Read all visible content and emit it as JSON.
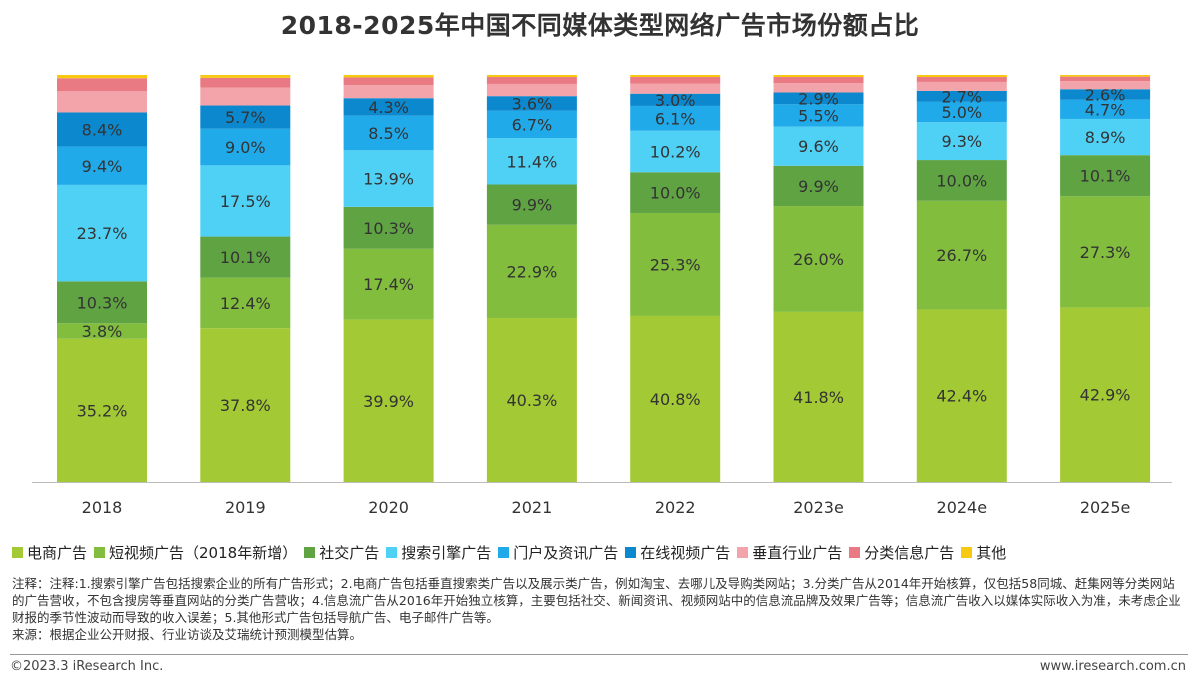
{
  "chart_data": {
    "type": "bar",
    "stacked": true,
    "title": "2018-2025年中国不同媒体类型网络广告市场份额占比",
    "xlabel": "",
    "ylabel": "",
    "ylim": [
      0,
      100
    ],
    "grid": false,
    "legend_position": "bottom",
    "categories": [
      "2018",
      "2019",
      "2020",
      "2021",
      "2022",
      "2023e",
      "2024e",
      "2025e"
    ],
    "series": [
      {
        "name": "电商广告",
        "color": "#a3c935",
        "values": [
          35.2,
          37.8,
          39.9,
          40.3,
          40.8,
          41.8,
          42.4,
          42.9
        ]
      },
      {
        "name": "短视频广告（2018年新增）",
        "color": "#82bd3e",
        "values": [
          3.8,
          12.4,
          17.4,
          22.9,
          25.3,
          26.0,
          26.7,
          27.3
        ]
      },
      {
        "name": "社交广告",
        "color": "#5fa343",
        "values": [
          10.3,
          10.1,
          10.3,
          9.9,
          10.0,
          9.9,
          10.0,
          10.1
        ]
      },
      {
        "name": "搜索引擎广告",
        "color": "#4fd0f5",
        "values": [
          23.7,
          17.5,
          13.9,
          11.4,
          10.2,
          9.6,
          9.3,
          8.9
        ]
      },
      {
        "name": "门户及资讯广告",
        "color": "#21aaea",
        "values": [
          9.4,
          9.0,
          8.5,
          6.7,
          6.1,
          5.5,
          5.0,
          4.7
        ]
      },
      {
        "name": "在线视频广告",
        "color": "#0c88cf",
        "values": [
          8.4,
          5.7,
          4.3,
          3.6,
          3.0,
          2.9,
          2.7,
          2.6
        ]
      },
      {
        "name": "垂直行业广告",
        "color": "#f3a4aa",
        "values": [
          5.2,
          4.4,
          3.2,
          3.0,
          2.5,
          2.3,
          2.2,
          2.0
        ]
      },
      {
        "name": "分类信息广告",
        "color": "#e97a84",
        "values": [
          3.2,
          2.4,
          1.9,
          1.7,
          1.6,
          1.5,
          1.2,
          1.1
        ]
      },
      {
        "name": "其他",
        "color": "#f7c910",
        "values": [
          0.8,
          0.7,
          0.6,
          0.5,
          0.5,
          0.5,
          0.5,
          0.4
        ]
      }
    ],
    "labeled_series_count": 6
  },
  "notes": [
    "注释：注释:1.搜索引擎广告包括搜索企业的所有广告形式；2.电商广告包括垂直搜索类广告以及展示类广告，例如淘宝、去哪儿及导购类网站；3.分类广告从2014年开始核算，仅包括58同城、赶集网等分类网站的广告营收，不包含搜房等垂直网站的分类广告营收；4.信息流广告从2016年开始独立核算，主要包括社交、新闻资讯、视频网站中的信息流品牌及效果广告等；信息流广告收入以媒体实际收入为准，未考虑企业财报的季节性波动而导致的收入误差；5.其他形式广告包括导航广告、电子邮件广告等。",
    "来源：根据企业公开财报、行业访谈及艾瑞统计预测模型估算。"
  ],
  "footer": {
    "copyright": "©2023.3 iResearch Inc.",
    "website": "www.iresearch.com.cn"
  }
}
